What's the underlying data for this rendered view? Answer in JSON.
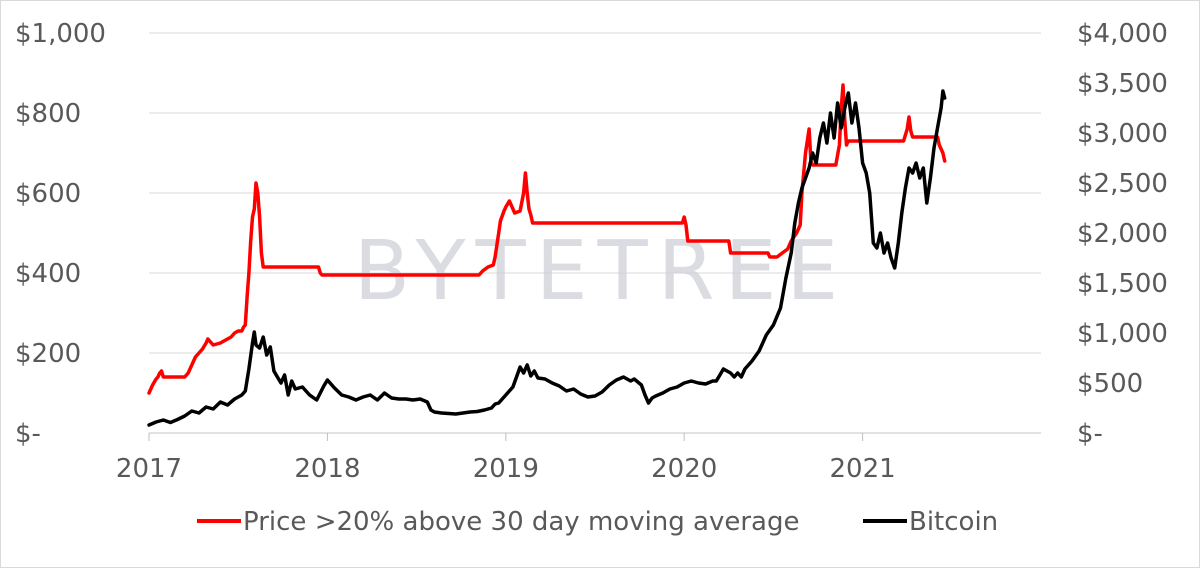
{
  "chart_data": {
    "type": "line",
    "title": "",
    "watermark": "BYTETREE",
    "x_axis": {
      "min": 2017.0,
      "max": 2022.0,
      "ticks": [
        2017,
        2018,
        2019,
        2020,
        2021
      ],
      "tick_labels": [
        "2017",
        "2018",
        "2019",
        "2020",
        "2021"
      ]
    },
    "y_left": {
      "min": 0,
      "max": 1000,
      "ticks": [
        0,
        200,
        400,
        600,
        800,
        1000
      ],
      "tick_labels": [
        "$-",
        "$200",
        "$400",
        "$600",
        "$800",
        "$1,000"
      ]
    },
    "y_right": {
      "min": 0,
      "max": 4000,
      "ticks": [
        0,
        500,
        1000,
        1500,
        2000,
        2500,
        3000,
        3500,
        4000
      ],
      "tick_labels": [
        "$-",
        "$500",
        "$1,000",
        "$1,500",
        "$2,000",
        "$2,500",
        "$3,000",
        "$3,500",
        "$4,000"
      ]
    },
    "grid": "horizontal",
    "legend_position": "bottom",
    "series": [
      {
        "name": "Price >20% above 30 day moving average",
        "axis": "left",
        "color": "#ff0000",
        "points": [
          [
            2017.0,
            100
          ],
          [
            2017.02,
            120
          ],
          [
            2017.04,
            135
          ],
          [
            2017.05,
            140
          ],
          [
            2017.06,
            150
          ],
          [
            2017.07,
            155
          ],
          [
            2017.08,
            140
          ],
          [
            2017.09,
            140
          ],
          [
            2017.2,
            140
          ],
          [
            2017.22,
            150
          ],
          [
            2017.23,
            160
          ],
          [
            2017.26,
            190
          ],
          [
            2017.28,
            200
          ],
          [
            2017.3,
            210
          ],
          [
            2017.32,
            225
          ],
          [
            2017.33,
            235
          ],
          [
            2017.36,
            220
          ],
          [
            2017.4,
            225
          ],
          [
            2017.42,
            230
          ],
          [
            2017.46,
            240
          ],
          [
            2017.48,
            250
          ],
          [
            2017.5,
            255
          ],
          [
            2017.52,
            255
          ],
          [
            2017.53,
            265
          ],
          [
            2017.54,
            270
          ],
          [
            2017.55,
            340
          ],
          [
            2017.56,
            400
          ],
          [
            2017.57,
            480
          ],
          [
            2017.58,
            540
          ],
          [
            2017.59,
            560
          ],
          [
            2017.6,
            625
          ],
          [
            2017.61,
            600
          ],
          [
            2017.62,
            540
          ],
          [
            2017.63,
            450
          ],
          [
            2017.64,
            415
          ],
          [
            2017.95,
            415
          ],
          [
            2017.96,
            400
          ],
          [
            2017.97,
            395
          ],
          [
            2018.85,
            395
          ],
          [
            2018.87,
            405
          ],
          [
            2018.9,
            415
          ],
          [
            2018.93,
            420
          ],
          [
            2018.94,
            440
          ],
          [
            2018.95,
            470
          ],
          [
            2018.96,
            500
          ],
          [
            2018.97,
            530
          ],
          [
            2018.99,
            555
          ],
          [
            2019.0,
            565
          ],
          [
            2019.02,
            580
          ],
          [
            2019.05,
            550
          ],
          [
            2019.08,
            555
          ],
          [
            2019.1,
            600
          ],
          [
            2019.11,
            650
          ],
          [
            2019.12,
            600
          ],
          [
            2019.13,
            560
          ],
          [
            2019.14,
            545
          ],
          [
            2019.15,
            525
          ],
          [
            2019.99,
            525
          ],
          [
            2020.0,
            540
          ],
          [
            2020.01,
            520
          ],
          [
            2020.02,
            480
          ],
          [
            2020.25,
            480
          ],
          [
            2020.26,
            450
          ],
          [
            2020.47,
            450
          ],
          [
            2020.48,
            440
          ],
          [
            2020.52,
            440
          ],
          [
            2020.55,
            450
          ],
          [
            2020.58,
            460
          ],
          [
            2020.6,
            480
          ],
          [
            2020.63,
            500
          ],
          [
            2020.65,
            520
          ],
          [
            2020.66,
            600
          ],
          [
            2020.68,
            700
          ],
          [
            2020.7,
            760
          ],
          [
            2020.71,
            680
          ],
          [
            2020.72,
            670
          ],
          [
            2020.85,
            670
          ],
          [
            2020.87,
            720
          ],
          [
            2020.88,
            810
          ],
          [
            2020.89,
            870
          ],
          [
            2020.9,
            780
          ],
          [
            2020.91,
            720
          ],
          [
            2020.92,
            730
          ],
          [
            2021.23,
            730
          ],
          [
            2021.25,
            760
          ],
          [
            2021.26,
            790
          ],
          [
            2021.27,
            755
          ],
          [
            2021.28,
            740
          ],
          [
            2021.42,
            740
          ],
          [
            2021.43,
            720
          ],
          [
            2021.45,
            700
          ],
          [
            2021.46,
            680
          ]
        ]
      },
      {
        "name": "Bitcoin",
        "axis": "right",
        "color": "#000000",
        "points": [
          [
            2017.0,
            80
          ],
          [
            2017.04,
            110
          ],
          [
            2017.08,
            130
          ],
          [
            2017.12,
            105
          ],
          [
            2017.16,
            135
          ],
          [
            2017.2,
            170
          ],
          [
            2017.24,
            220
          ],
          [
            2017.28,
            200
          ],
          [
            2017.32,
            260
          ],
          [
            2017.36,
            240
          ],
          [
            2017.4,
            310
          ],
          [
            2017.44,
            280
          ],
          [
            2017.48,
            340
          ],
          [
            2017.52,
            380
          ],
          [
            2017.54,
            420
          ],
          [
            2017.56,
            640
          ],
          [
            2017.58,
            900
          ],
          [
            2017.59,
            1010
          ],
          [
            2017.6,
            880
          ],
          [
            2017.62,
            850
          ],
          [
            2017.64,
            960
          ],
          [
            2017.66,
            780
          ],
          [
            2017.68,
            860
          ],
          [
            2017.7,
            620
          ],
          [
            2017.72,
            560
          ],
          [
            2017.74,
            500
          ],
          [
            2017.76,
            580
          ],
          [
            2017.78,
            380
          ],
          [
            2017.8,
            520
          ],
          [
            2017.82,
            440
          ],
          [
            2017.86,
            460
          ],
          [
            2017.9,
            380
          ],
          [
            2017.94,
            330
          ],
          [
            2017.98,
            470
          ],
          [
            2018.0,
            530
          ],
          [
            2018.04,
            450
          ],
          [
            2018.08,
            380
          ],
          [
            2018.12,
            360
          ],
          [
            2018.16,
            330
          ],
          [
            2018.2,
            360
          ],
          [
            2018.24,
            380
          ],
          [
            2018.28,
            330
          ],
          [
            2018.32,
            400
          ],
          [
            2018.36,
            350
          ],
          [
            2018.4,
            340
          ],
          [
            2018.44,
            340
          ],
          [
            2018.48,
            330
          ],
          [
            2018.52,
            340
          ],
          [
            2018.56,
            310
          ],
          [
            2018.58,
            230
          ],
          [
            2018.6,
            210
          ],
          [
            2018.64,
            200
          ],
          [
            2018.68,
            195
          ],
          [
            2018.72,
            190
          ],
          [
            2018.76,
            200
          ],
          [
            2018.8,
            210
          ],
          [
            2018.84,
            215
          ],
          [
            2018.88,
            230
          ],
          [
            2018.92,
            250
          ],
          [
            2018.94,
            290
          ],
          [
            2018.96,
            300
          ],
          [
            2019.0,
            380
          ],
          [
            2019.04,
            460
          ],
          [
            2019.06,
            560
          ],
          [
            2019.08,
            660
          ],
          [
            2019.1,
            600
          ],
          [
            2019.12,
            680
          ],
          [
            2019.14,
            570
          ],
          [
            2019.16,
            620
          ],
          [
            2019.18,
            550
          ],
          [
            2019.22,
            540
          ],
          [
            2019.26,
            500
          ],
          [
            2019.3,
            470
          ],
          [
            2019.34,
            420
          ],
          [
            2019.38,
            440
          ],
          [
            2019.42,
            390
          ],
          [
            2019.46,
            360
          ],
          [
            2019.5,
            370
          ],
          [
            2019.54,
            410
          ],
          [
            2019.58,
            480
          ],
          [
            2019.62,
            530
          ],
          [
            2019.66,
            560
          ],
          [
            2019.7,
            520
          ],
          [
            2019.72,
            540
          ],
          [
            2019.76,
            480
          ],
          [
            2019.78,
            380
          ],
          [
            2019.8,
            300
          ],
          [
            2019.82,
            350
          ],
          [
            2019.84,
            370
          ],
          [
            2019.88,
            400
          ],
          [
            2019.92,
            440
          ],
          [
            2019.96,
            460
          ],
          [
            2020.0,
            500
          ],
          [
            2020.04,
            520
          ],
          [
            2020.08,
            500
          ],
          [
            2020.12,
            490
          ],
          [
            2020.16,
            520
          ],
          [
            2020.18,
            520
          ],
          [
            2020.2,
            580
          ],
          [
            2020.22,
            640
          ],
          [
            2020.24,
            620
          ],
          [
            2020.26,
            600
          ],
          [
            2020.28,
            560
          ],
          [
            2020.3,
            600
          ],
          [
            2020.32,
            560
          ],
          [
            2020.34,
            640
          ],
          [
            2020.38,
            720
          ],
          [
            2020.42,
            820
          ],
          [
            2020.46,
            980
          ],
          [
            2020.5,
            1080
          ],
          [
            2020.54,
            1250
          ],
          [
            2020.57,
            1550
          ],
          [
            2020.6,
            1800
          ],
          [
            2020.62,
            2100
          ],
          [
            2020.64,
            2300
          ],
          [
            2020.66,
            2450
          ],
          [
            2020.68,
            2550
          ],
          [
            2020.7,
            2650
          ],
          [
            2020.72,
            2800
          ],
          [
            2020.74,
            2700
          ],
          [
            2020.76,
            2950
          ],
          [
            2020.78,
            3100
          ],
          [
            2020.8,
            2900
          ],
          [
            2020.82,
            3200
          ],
          [
            2020.84,
            2950
          ],
          [
            2020.86,
            3300
          ],
          [
            2020.88,
            3050
          ],
          [
            2020.9,
            3250
          ],
          [
            2020.92,
            3400
          ],
          [
            2020.94,
            3100
          ],
          [
            2020.96,
            3300
          ],
          [
            2020.98,
            3050
          ],
          [
            2021.0,
            2700
          ],
          [
            2021.02,
            2600
          ],
          [
            2021.04,
            2400
          ],
          [
            2021.06,
            1900
          ],
          [
            2021.08,
            1850
          ],
          [
            2021.1,
            2000
          ],
          [
            2021.12,
            1800
          ],
          [
            2021.14,
            1900
          ],
          [
            2021.16,
            1750
          ],
          [
            2021.18,
            1650
          ],
          [
            2021.2,
            1900
          ],
          [
            2021.22,
            2200
          ],
          [
            2021.24,
            2450
          ],
          [
            2021.26,
            2650
          ],
          [
            2021.28,
            2600
          ],
          [
            2021.3,
            2700
          ],
          [
            2021.32,
            2550
          ],
          [
            2021.34,
            2650
          ],
          [
            2021.36,
            2300
          ],
          [
            2021.38,
            2550
          ],
          [
            2021.4,
            2850
          ],
          [
            2021.42,
            3050
          ],
          [
            2021.44,
            3250
          ],
          [
            2021.45,
            3420
          ],
          [
            2021.46,
            3350
          ]
        ]
      }
    ]
  }
}
